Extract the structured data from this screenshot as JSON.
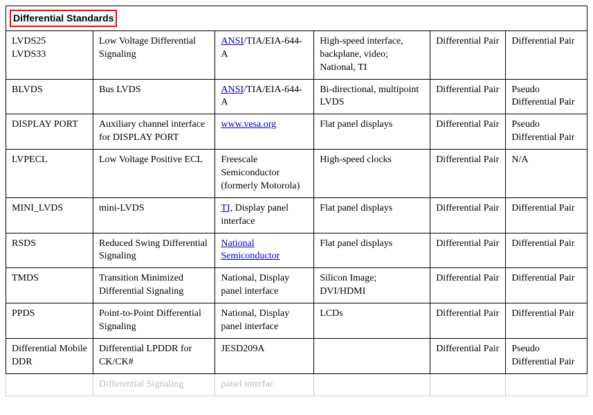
{
  "section_title": "Differential Standards",
  "link_color": "#0000cc",
  "highlight_border_color": "#ff0000",
  "column_widths_pct": [
    15,
    21,
    17,
    20,
    13,
    14
  ],
  "rows": [
    {
      "c0": "LVDS25\nLVDS33",
      "c1": "Low Voltage Differential Signaling",
      "c2_parts": [
        {
          "text": "ANSI",
          "link": true
        },
        {
          "text": "/TIA/EIA-644-A",
          "link": false
        }
      ],
      "c3": "High-speed interface, backplane, video; National, TI",
      "c4": "Differential Pair",
      "c5": "Differential Pair"
    },
    {
      "c0": "BLVDS",
      "c1": "Bus LVDS",
      "c2_parts": [
        {
          "text": "ANSI",
          "link": true
        },
        {
          "text": "/TIA/EIA-644-A",
          "link": false
        }
      ],
      "c3": "Bi-directional, multipoint LVDS",
      "c4": "Differential Pair",
      "c5": "Pseudo Differential Pair"
    },
    {
      "c0": "DISPLAY PORT",
      "c1": "Auxiliary channel interface for DISPLAY PORT",
      "c2_parts": [
        {
          "text": "www.vesa.org",
          "link": true
        }
      ],
      "c3": "Flat panel displays",
      "c4": "Differential Pair",
      "c5": "Pseudo Differential Pair"
    },
    {
      "c0": "LVPECL",
      "c1": "Low Voltage Positive ECL",
      "c2_parts": [
        {
          "text": "Freescale Semiconductor (formerly Motorola)",
          "link": false
        }
      ],
      "c3": "High-speed clocks",
      "c4": "Differential Pair",
      "c5": "N/A"
    },
    {
      "c0": "MINI_LVDS",
      "c1": "mini-LVDS",
      "c2_parts": [
        {
          "text": "TI,",
          "link": true
        },
        {
          "text": " Display panel interface",
          "link": false
        }
      ],
      "c3": "Flat panel displays",
      "c4": "Differential Pair",
      "c5": "Differential Pair"
    },
    {
      "c0": "RSDS",
      "c1": "Reduced Swing Differential Signaling",
      "c2_parts": [
        {
          "text": "National Semiconductor",
          "link": true
        }
      ],
      "c3": "Flat panel displays",
      "c4": "Differential Pair",
      "c5": "Differential Pair"
    },
    {
      "c0": "TMDS",
      "c1": "Transition Minimized Differential Signaling",
      "c2_parts": [
        {
          "text": "National, Display panel interface",
          "link": false
        }
      ],
      "c3": "Silicon Image; DVI/HDMI",
      "c4": "Differential Pair",
      "c5": "Differential Pair"
    },
    {
      "c0": "PPDS",
      "c1": "Point-to-Point Differential Signaling",
      "c2_parts": [
        {
          "text": "National, Display panel interface",
          "link": false
        }
      ],
      "c3": "LCDs",
      "c4": "Differential Pair",
      "c5": "Differential Pair"
    },
    {
      "c0": "Differential Mobile DDR",
      "c1": "Differential LPDDR for CK/CK#",
      "c2_parts": [
        {
          "text": "JESD209A",
          "link": false
        }
      ],
      "c3": "",
      "c4": "Differential Pair",
      "c5": "Pseudo Differential Pair"
    }
  ],
  "faded_partial_row": {
    "c1": "Differential Signaling",
    "c2": "panel interfac"
  }
}
